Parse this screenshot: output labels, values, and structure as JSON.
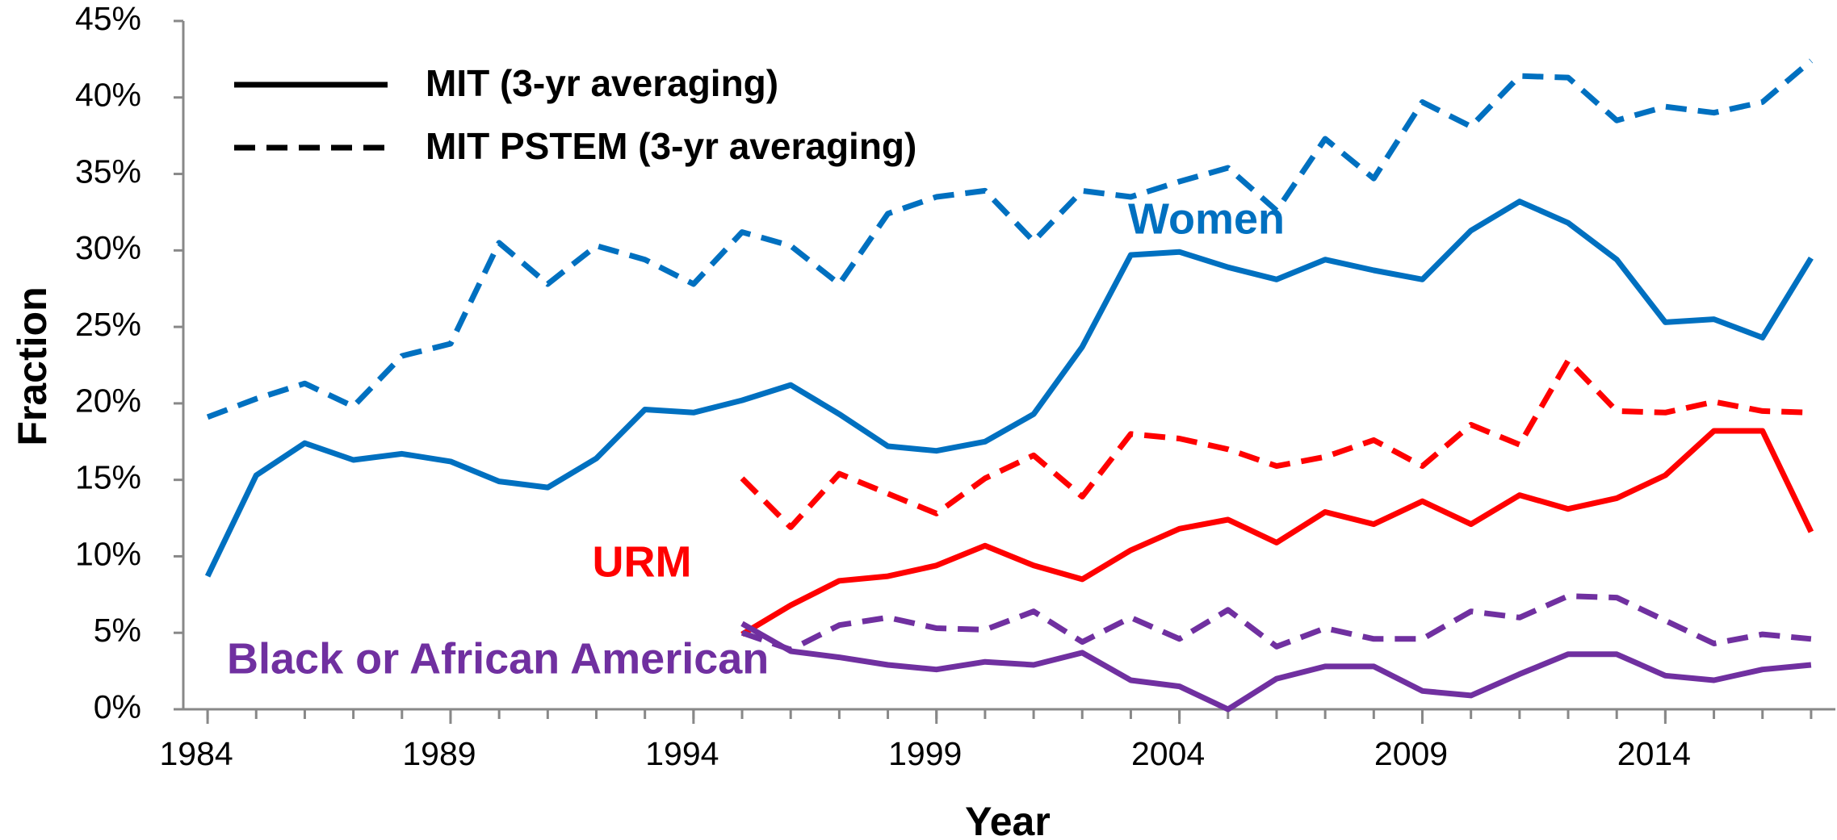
{
  "chart_data": {
    "type": "line",
    "x_label": "Year",
    "y_label": "Fraction",
    "legend": {
      "mit": "MIT (3-yr averaging)",
      "pstem": "MIT PSTEM (3-yr averaging)"
    },
    "line_styles": {
      "mit": "solid",
      "pstem": "dashed"
    },
    "x": [
      1984,
      1985,
      1986,
      1987,
      1988,
      1989,
      1990,
      1991,
      1992,
      1993,
      1994,
      1995,
      1996,
      1997,
      1998,
      1999,
      2000,
      2001,
      2002,
      2003,
      2004,
      2005,
      2006,
      2007,
      2008,
      2009,
      2010,
      2011,
      2012,
      2013,
      2014,
      2015,
      2016,
      2017
    ],
    "xlim": [
      1983.5,
      2017.5
    ],
    "xticks": [
      1984,
      1989,
      1994,
      1999,
      2004,
      2009,
      2014
    ],
    "ylim": [
      0,
      45
    ],
    "yticks": [
      {
        "value": 0,
        "label": "0%"
      },
      {
        "value": 5,
        "label": "5%"
      },
      {
        "value": 10,
        "label": "10%"
      },
      {
        "value": 15,
        "label": "15%"
      },
      {
        "value": 20,
        "label": "20%"
      },
      {
        "value": 25,
        "label": "25%"
      },
      {
        "value": 30,
        "label": "30%"
      },
      {
        "value": 35,
        "label": "35%"
      },
      {
        "value": 40,
        "label": "40%"
      },
      {
        "value": 45,
        "label": "45%"
      }
    ],
    "groups": [
      {
        "name": "Women",
        "color": "#0070c0",
        "mit": [
          8.7,
          15.3,
          17.4,
          16.3,
          16.7,
          16.2,
          14.9,
          14.5,
          16.4,
          19.6,
          19.4,
          20.2,
          21.2,
          19.3,
          17.2,
          16.9,
          17.5,
          19.3,
          23.7,
          29.7,
          29.9,
          28.9,
          28.1,
          29.4,
          28.7,
          28.1,
          31.3,
          33.2,
          31.8,
          29.4,
          25.3,
          25.5,
          24.3,
          29.5
        ],
        "pstem": [
          19.1,
          20.3,
          21.3,
          19.8,
          23.1,
          23.9,
          30.5,
          27.8,
          30.3,
          29.4,
          27.8,
          31.2,
          30.3,
          27.8,
          32.4,
          33.5,
          33.9,
          30.6,
          33.9,
          33.5,
          34.5,
          35.4,
          32.6,
          37.3,
          34.7,
          39.7,
          38.1,
          41.4,
          41.3,
          38.5,
          39.4,
          39.0,
          39.7,
          42.4
        ]
      },
      {
        "name": "URM",
        "color": "#ff0000",
        "mit": [
          null,
          null,
          null,
          null,
          null,
          null,
          null,
          null,
          null,
          null,
          null,
          4.9,
          6.8,
          8.4,
          8.7,
          9.4,
          10.7,
          9.4,
          8.5,
          10.4,
          11.8,
          12.4,
          10.9,
          12.9,
          12.1,
          13.6,
          12.1,
          14.0,
          13.1,
          13.8,
          15.3,
          18.2,
          18.2,
          11.6
        ],
        "pstem": [
          null,
          null,
          null,
          null,
          null,
          null,
          null,
          null,
          null,
          null,
          null,
          15.1,
          11.9,
          15.4,
          14.1,
          12.8,
          15.1,
          16.6,
          13.9,
          18.0,
          17.7,
          17.0,
          15.9,
          16.5,
          17.6,
          15.9,
          18.6,
          17.3,
          22.8,
          19.5,
          19.4,
          20.1,
          19.5,
          19.4
        ]
      },
      {
        "name": "Black or African American",
        "color": "#7030a0",
        "mit": [
          null,
          null,
          null,
          null,
          null,
          null,
          null,
          null,
          null,
          null,
          null,
          5.6,
          3.8,
          3.4,
          2.9,
          2.6,
          3.1,
          2.9,
          3.7,
          1.9,
          1.5,
          0.0,
          2.0,
          2.8,
          2.8,
          1.2,
          0.9,
          2.3,
          3.6,
          3.6,
          2.2,
          1.9,
          2.6,
          2.9
        ],
        "pstem": [
          null,
          null,
          null,
          null,
          null,
          null,
          null,
          null,
          null,
          null,
          null,
          5.0,
          3.9,
          5.5,
          6.0,
          5.3,
          5.2,
          6.4,
          4.4,
          6.0,
          4.6,
          6.5,
          4.1,
          5.3,
          4.6,
          4.6,
          6.4,
          6.0,
          7.4,
          7.3,
          5.8,
          4.3,
          4.9,
          4.6
        ]
      }
    ]
  }
}
